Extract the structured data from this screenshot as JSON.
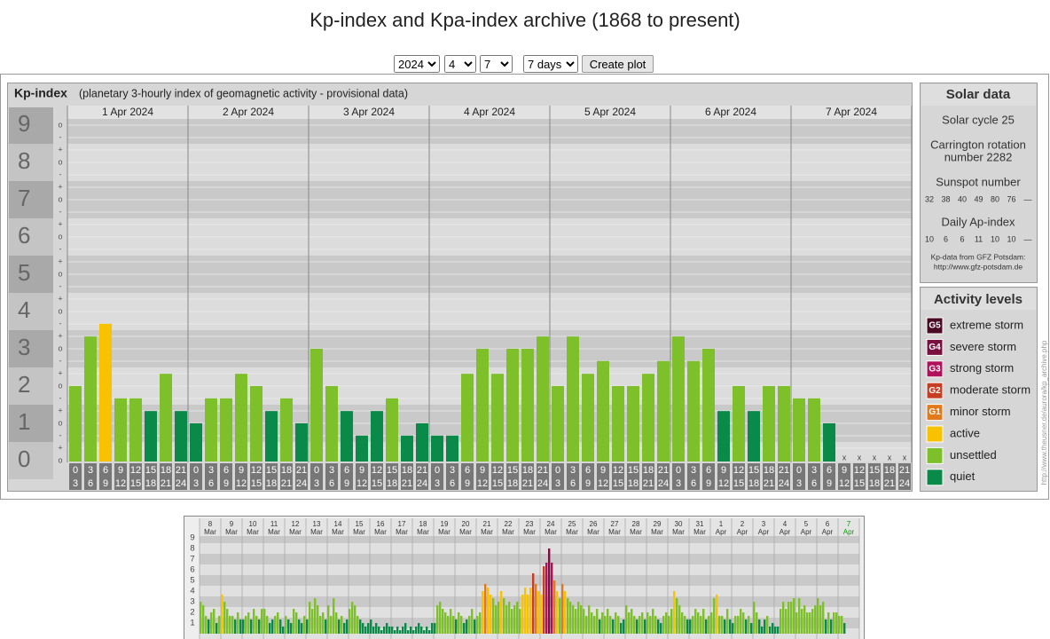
{
  "header": {
    "title": "Kp-index and Kpa-index archive (1868 to present)"
  },
  "controls": {
    "year": "2024",
    "month": "4",
    "day": "7",
    "span": "7 days",
    "button": "Create plot"
  },
  "activity_levels": {
    "title": "Activity levels",
    "items": [
      {
        "code": "G5",
        "label": "extreme storm",
        "color": "#4a0a24"
      },
      {
        "code": "G4",
        "label": "severe storm",
        "color": "#7a1040"
      },
      {
        "code": "G3",
        "label": "strong storm",
        "color": "#b0105c"
      },
      {
        "code": "G2",
        "label": "moderate storm",
        "color": "#c83c22"
      },
      {
        "code": "G1",
        "label": "minor storm",
        "color": "#e07a1a"
      },
      {
        "label": "active",
        "color": "#f8c200"
      },
      {
        "label": "unsettled",
        "color": "#7dc02a"
      },
      {
        "label": "quiet",
        "color": "#0a8a48"
      }
    ]
  },
  "chart_data": [
    {
      "type": "bar",
      "title": "Kp-index",
      "subtitle": "(planetary 3-hourly index of geomagnetic activity - provisional data)",
      "ylim": [
        0,
        9
      ],
      "yticks": [
        0,
        1,
        2,
        3,
        4,
        5,
        6,
        7,
        8,
        9
      ],
      "minor_labels": [
        "+",
        "o",
        "-"
      ],
      "hours": [
        [
          0,
          3
        ],
        [
          3,
          6
        ],
        [
          6,
          9
        ],
        [
          9,
          12
        ],
        [
          12,
          15
        ],
        [
          15,
          18
        ],
        [
          18,
          21
        ],
        [
          21,
          24
        ]
      ],
      "missing_label": "x",
      "days": [
        {
          "label": "1 Apr 2024",
          "values": [
            2,
            3.33,
            3.67,
            1.67,
            1.67,
            1.33,
            2.33,
            1.33
          ],
          "levels": [
            6,
            6,
            5,
            6,
            6,
            7,
            6,
            7
          ]
        },
        {
          "label": "2 Apr 2024",
          "values": [
            1,
            1.67,
            1.67,
            2.33,
            2,
            1.33,
            1.67,
            1
          ],
          "levels": [
            7,
            6,
            6,
            6,
            6,
            7,
            6,
            7
          ]
        },
        {
          "label": "3 Apr 2024",
          "values": [
            3,
            2,
            1.33,
            0.67,
            1.33,
            1.67,
            0.67,
            1
          ],
          "levels": [
            6,
            6,
            7,
            7,
            7,
            6,
            7,
            7
          ]
        },
        {
          "label": "4 Apr 2024",
          "values": [
            0.67,
            0.67,
            2.33,
            3,
            2.33,
            3,
            3,
            3.33
          ],
          "levels": [
            7,
            7,
            6,
            6,
            6,
            6,
            6,
            6
          ]
        },
        {
          "label": "5 Apr 2024",
          "values": [
            2,
            3.33,
            2.33,
            2.67,
            2,
            2,
            2.33,
            2.67
          ],
          "levels": [
            6,
            6,
            6,
            6,
            6,
            6,
            6,
            6
          ]
        },
        {
          "label": "6 Apr 2024",
          "values": [
            3.33,
            2.67,
            3,
            1.33,
            2,
            1.33,
            2,
            2
          ],
          "levels": [
            6,
            6,
            6,
            7,
            6,
            7,
            6,
            6
          ]
        },
        {
          "label": "7 Apr 2024",
          "values": [
            1.67,
            1.67,
            1,
            null,
            null,
            null,
            null,
            null
          ],
          "levels": [
            6,
            6,
            7,
            null,
            null,
            null,
            null,
            null
          ]
        }
      ]
    },
    {
      "type": "bar",
      "ylim": [
        0,
        9
      ],
      "yticks": [
        1,
        2,
        3,
        4,
        5,
        6,
        7,
        8,
        9
      ],
      "days": [
        {
          "day": 8,
          "month": "Mar",
          "values": [
            3,
            2.67,
            1.67,
            1.33,
            2,
            2.33,
            1,
            1.67
          ],
          "levels": [
            6,
            6,
            6,
            7,
            6,
            6,
            7,
            6
          ]
        },
        {
          "day": 9,
          "month": "Mar",
          "values": [
            3.67,
            3,
            2.33,
            1.67,
            1.67,
            1.33,
            2,
            1.33
          ],
          "levels": [
            5,
            6,
            6,
            6,
            6,
            7,
            6,
            7
          ]
        },
        {
          "day": 10,
          "month": "Mar",
          "values": [
            1.33,
            1.67,
            2,
            1.33,
            2.33,
            1.67,
            1.33,
            2.33
          ],
          "levels": [
            7,
            6,
            6,
            7,
            6,
            6,
            7,
            6
          ]
        },
        {
          "day": 11,
          "month": "Mar",
          "values": [
            2.33,
            1.67,
            1,
            1.33,
            1.67,
            2,
            1.33,
            0.67
          ],
          "levels": [
            6,
            6,
            7,
            7,
            6,
            6,
            7,
            7
          ]
        },
        {
          "day": 12,
          "month": "Mar",
          "values": [
            1.67,
            1.33,
            1,
            2.33,
            2,
            1.33,
            1,
            1.67
          ],
          "levels": [
            6,
            7,
            7,
            6,
            6,
            7,
            7,
            6
          ]
        },
        {
          "day": 13,
          "month": "Mar",
          "values": [
            1.33,
            3,
            2.33,
            3.33,
            2.67,
            1.67,
            2,
            1.33
          ],
          "levels": [
            7,
            6,
            6,
            6,
            6,
            6,
            6,
            7
          ]
        },
        {
          "day": 14,
          "month": "Mar",
          "values": [
            2.67,
            1.67,
            3.33,
            2,
            1.33,
            1.67,
            1,
            1.33
          ],
          "levels": [
            6,
            6,
            6,
            6,
            7,
            6,
            7,
            7
          ]
        },
        {
          "day": 15,
          "month": "Mar",
          "values": [
            2.33,
            3,
            2.67,
            1.67,
            1.33,
            1,
            0.67,
            1
          ],
          "levels": [
            6,
            6,
            6,
            6,
            7,
            7,
            7,
            7
          ]
        },
        {
          "day": 16,
          "month": "Mar",
          "values": [
            1.33,
            0.67,
            1,
            0.67,
            0.33,
            0.67,
            1,
            0.67
          ],
          "levels": [
            7,
            7,
            7,
            7,
            7,
            7,
            7,
            7
          ]
        },
        {
          "day": 17,
          "month": "Mar",
          "values": [
            0.67,
            0.33,
            0.67,
            0.33,
            0.67,
            1,
            0.33,
            0.67
          ],
          "levels": [
            7,
            7,
            7,
            7,
            7,
            7,
            7,
            7
          ]
        },
        {
          "day": 18,
          "month": "Mar",
          "values": [
            0.33,
            0.67,
            1,
            0.67,
            0.33,
            0.67,
            0.33,
            1
          ],
          "levels": [
            7,
            7,
            7,
            7,
            7,
            7,
            7,
            7
          ]
        },
        {
          "day": 19,
          "month": "Mar",
          "values": [
            1,
            2.67,
            3,
            2.33,
            2,
            1.67,
            2.33,
            1.67
          ],
          "levels": [
            7,
            6,
            6,
            6,
            6,
            6,
            6,
            6
          ]
        },
        {
          "day": 20,
          "month": "Mar",
          "values": [
            1.33,
            2,
            1.67,
            1,
            1.33,
            1.67,
            2.33,
            1.33
          ],
          "levels": [
            7,
            6,
            6,
            7,
            7,
            6,
            6,
            7
          ]
        },
        {
          "day": 21,
          "month": "Mar",
          "values": [
            1.67,
            2,
            4,
            4.67,
            4.33,
            3.67,
            3.33,
            2.67
          ],
          "levels": [
            6,
            6,
            5,
            4,
            5,
            5,
            6,
            6
          ]
        },
        {
          "day": 22,
          "month": "Mar",
          "values": [
            3,
            4,
            3.33,
            2.67,
            3,
            2.33,
            2.67,
            3
          ],
          "levels": [
            6,
            5,
            6,
            6,
            6,
            6,
            6,
            6
          ]
        },
        {
          "day": 23,
          "month": "Mar",
          "values": [
            2.33,
            3.67,
            4.33,
            3.67,
            4.33,
            5.67,
            4.67,
            4
          ],
          "levels": [
            6,
            5,
            5,
            5,
            5,
            3,
            4,
            5
          ]
        },
        {
          "day": 24,
          "month": "Mar",
          "values": [
            3.67,
            6.33,
            6.67,
            8,
            6.67,
            5,
            4,
            3.33
          ],
          "levels": [
            5,
            3,
            2,
            1,
            2,
            4,
            5,
            6
          ]
        },
        {
          "day": 25,
          "month": "Mar",
          "values": [
            4.67,
            4,
            3.33,
            3,
            2.67,
            2.33,
            3,
            2.67
          ],
          "levels": [
            4,
            5,
            6,
            6,
            6,
            6,
            6,
            6
          ]
        },
        {
          "day": 26,
          "month": "Mar",
          "values": [
            2.33,
            1.67,
            2.67,
            2,
            1.67,
            2.33,
            1.33,
            2
          ],
          "levels": [
            6,
            6,
            6,
            6,
            6,
            6,
            7,
            6
          ]
        },
        {
          "day": 27,
          "month": "Mar",
          "values": [
            1.67,
            2.33,
            1.67,
            1.33,
            2,
            1.67,
            1,
            1.33
          ],
          "levels": [
            6,
            6,
            6,
            7,
            6,
            6,
            7,
            7
          ]
        },
        {
          "day": 28,
          "month": "Mar",
          "values": [
            2.67,
            2,
            2.33,
            1.67,
            1.33,
            1.67,
            2,
            1.33
          ],
          "levels": [
            6,
            6,
            6,
            6,
            7,
            6,
            6,
            7
          ]
        },
        {
          "day": 29,
          "month": "Mar",
          "values": [
            2,
            1.67,
            2.33,
            1.67,
            1.33,
            1,
            1.67,
            2
          ],
          "levels": [
            6,
            6,
            6,
            6,
            7,
            7,
            6,
            6
          ]
        },
        {
          "day": 30,
          "month": "Mar",
          "values": [
            1.67,
            2.33,
            4,
            3.33,
            2.67,
            2,
            1.67,
            1.33
          ],
          "levels": [
            6,
            6,
            5,
            6,
            6,
            6,
            6,
            7
          ]
        },
        {
          "day": 31,
          "month": "Mar",
          "values": [
            1.33,
            1.67,
            2.33,
            2,
            1.67,
            2.33,
            1.33,
            1.67
          ],
          "levels": [
            7,
            6,
            6,
            6,
            6,
            6,
            7,
            6
          ]
        },
        {
          "day": 1,
          "month": "Apr",
          "values": [
            2,
            3.33,
            3.67,
            1.67,
            1.67,
            1.33,
            2.33,
            1.33
          ],
          "levels": [
            6,
            6,
            5,
            6,
            6,
            7,
            6,
            7
          ]
        },
        {
          "day": 2,
          "month": "Apr",
          "values": [
            1,
            1.67,
            1.67,
            2.33,
            2,
            1.33,
            1.67,
            1
          ],
          "levels": [
            7,
            6,
            6,
            6,
            6,
            7,
            6,
            7
          ]
        },
        {
          "day": 3,
          "month": "Apr",
          "values": [
            3,
            2,
            1.33,
            0.67,
            1.33,
            1.67,
            0.67,
            1
          ],
          "levels": [
            6,
            6,
            7,
            7,
            7,
            6,
            7,
            7
          ]
        },
        {
          "day": 4,
          "month": "Apr",
          "values": [
            0.67,
            0.67,
            2.33,
            3,
            2.33,
            3,
            3,
            3.33
          ],
          "levels": [
            7,
            7,
            6,
            6,
            6,
            6,
            6,
            6
          ]
        },
        {
          "day": 5,
          "month": "Apr",
          "values": [
            2,
            3.33,
            2.33,
            2.67,
            2,
            2,
            2.33,
            2.67
          ],
          "levels": [
            6,
            6,
            6,
            6,
            6,
            6,
            6,
            6
          ]
        },
        {
          "day": 6,
          "month": "Apr",
          "values": [
            3.33,
            2.67,
            3,
            1.33,
            2,
            1.33,
            2,
            2
          ],
          "levels": [
            6,
            6,
            6,
            7,
            6,
            7,
            6,
            6
          ]
        },
        {
          "day": 7,
          "month": "Apr",
          "values": [
            1.67,
            1.67,
            1
          ],
          "levels": [
            6,
            6,
            7
          ],
          "highlight": "#00a000"
        }
      ]
    }
  ],
  "solar_data": {
    "title": "Solar data",
    "cycle": "Solar cycle 25",
    "carrington": [
      "Carrington rotation",
      "number 2282"
    ],
    "sunspot_title": "Sunspot number",
    "sunspots": [
      32,
      38,
      40,
      49,
      80,
      76,
      null
    ],
    "ap_title": "Daily Ap-index",
    "ap": [
      10,
      6,
      6,
      11,
      10,
      10,
      null
    ],
    "missing_label": "—",
    "source": [
      "Kp-data from GFZ Potsdam:",
      "http://www.gfz-potsdam.de"
    ]
  },
  "credit": "http://www.theusner.de/aurora/kp_archive.php"
}
